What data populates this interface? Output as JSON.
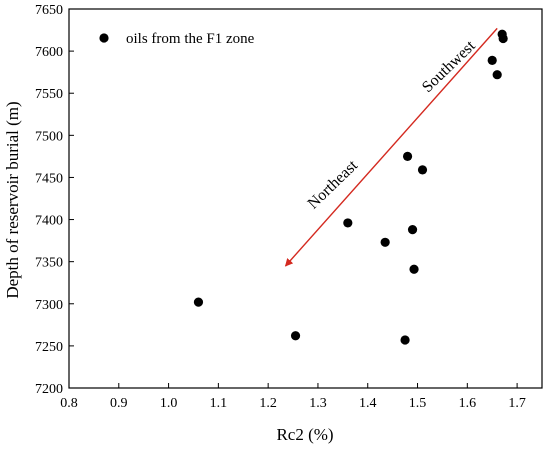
{
  "chart_data": {
    "type": "scatter",
    "xlabel": "Rc2 (%)",
    "ylabel": "Depth of reservoir burial (m)",
    "xlim": [
      0.8,
      1.75
    ],
    "ylim": [
      7200,
      7650
    ],
    "xticks": [
      "0.8",
      "0.9",
      "1.0",
      "1.1",
      "1.2",
      "1.3",
      "1.4",
      "1.5",
      "1.6",
      "1.7"
    ],
    "yticks": [
      "7200",
      "7250",
      "7300",
      "7350",
      "7400",
      "7450",
      "7500",
      "7550",
      "7600",
      "7650"
    ],
    "grid": false,
    "legend": {
      "position": "top-left"
    },
    "series": [
      {
        "name": "oils from the F1 zone",
        "color": "#000000",
        "marker": "filled-circle",
        "points": [
          {
            "x": 1.06,
            "y": 7302
          },
          {
            "x": 1.255,
            "y": 7262
          },
          {
            "x": 1.36,
            "y": 7396
          },
          {
            "x": 1.435,
            "y": 7373
          },
          {
            "x": 1.475,
            "y": 7257
          },
          {
            "x": 1.48,
            "y": 7475
          },
          {
            "x": 1.49,
            "y": 7388
          },
          {
            "x": 1.493,
            "y": 7341
          },
          {
            "x": 1.51,
            "y": 7459
          },
          {
            "x": 1.65,
            "y": 7589
          },
          {
            "x": 1.66,
            "y": 7572
          },
          {
            "x": 1.67,
            "y": 7620
          },
          {
            "x": 1.672,
            "y": 7615
          }
        ]
      }
    ],
    "annotations": [
      {
        "text": "Southwest",
        "type": "label"
      },
      {
        "text": "Northeast",
        "type": "label"
      },
      {
        "type": "arrow",
        "color": "#d42a20",
        "from": {
          "x": 1.66,
          "y": 7627
        },
        "to": {
          "x": 1.235,
          "y": 7345
        }
      }
    ]
  }
}
